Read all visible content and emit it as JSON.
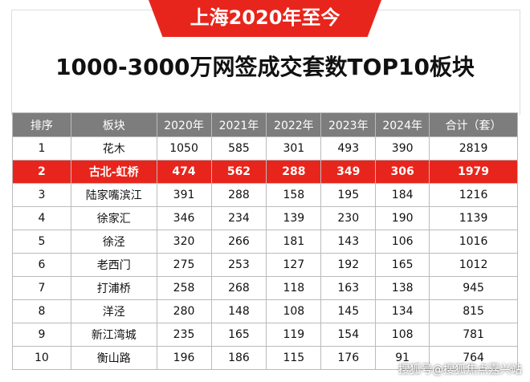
{
  "header": {
    "banner": "上海2020年至今",
    "title": "1000-3000万网签成交套数TOP10板块"
  },
  "table": {
    "columns": [
      "排序",
      "板块",
      "2020年",
      "2021年",
      "2022年",
      "2023年",
      "2024年",
      "合计（套）"
    ],
    "highlight_row": 1,
    "rows": [
      [
        1,
        "花木",
        1050,
        585,
        301,
        493,
        390,
        2819
      ],
      [
        2,
        "古北-虹桥",
        474,
        562,
        288,
        349,
        306,
        1979
      ],
      [
        3,
        "陆家嘴滨江",
        391,
        288,
        158,
        195,
        184,
        1216
      ],
      [
        4,
        "徐家汇",
        346,
        234,
        139,
        230,
        190,
        1139
      ],
      [
        5,
        "徐泾",
        320,
        266,
        181,
        143,
        106,
        1016
      ],
      [
        6,
        "老西门",
        275,
        253,
        127,
        192,
        165,
        1012
      ],
      [
        7,
        "打浦桥",
        258,
        268,
        118,
        163,
        138,
        945
      ],
      [
        8,
        "洋泾",
        280,
        148,
        108,
        145,
        134,
        815
      ],
      [
        9,
        "新江湾城",
        235,
        165,
        119,
        154,
        108,
        781
      ],
      [
        10,
        "衡山路",
        196,
        186,
        115,
        176,
        91,
        764
      ]
    ]
  },
  "watermark": "搜狐号@搜狐焦点嘉兴站"
}
